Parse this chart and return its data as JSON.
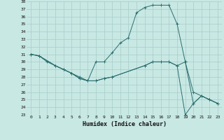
{
  "xlabel": "Humidex (Indice chaleur)",
  "xlim": [
    -0.5,
    23.5
  ],
  "ylim": [
    23,
    38
  ],
  "yticks": [
    23,
    24,
    25,
    26,
    27,
    28,
    29,
    30,
    31,
    32,
    33,
    34,
    35,
    36,
    37,
    38
  ],
  "xticks": [
    0,
    1,
    2,
    3,
    4,
    5,
    6,
    7,
    8,
    9,
    10,
    11,
    12,
    13,
    14,
    15,
    16,
    17,
    18,
    19,
    20,
    21,
    22,
    23
  ],
  "bg_color": "#c8e8e4",
  "grid_color": "#a8ccc8",
  "line_color": "#2a6e6e",
  "line1_x": [
    0,
    1,
    2,
    3,
    4,
    5,
    6,
    7,
    8,
    9,
    10,
    11,
    12,
    13,
    14,
    15,
    16,
    17,
    18,
    19,
    20,
    21,
    22,
    23
  ],
  "line1_y": [
    31,
    30.8,
    30,
    29.5,
    29,
    28.5,
    28,
    27.5,
    30,
    30,
    31.2,
    32.5,
    33.2,
    36.5,
    37.2,
    37.5,
    37.5,
    37.5,
    35,
    30,
    24.5,
    25.5,
    25,
    24.5
  ],
  "line2_x": [
    0,
    1,
    3,
    4,
    5,
    6,
    7,
    8,
    9,
    10,
    14,
    15,
    16,
    17,
    18,
    19,
    20,
    21,
    22,
    23
  ],
  "line2_y": [
    31,
    30.8,
    29.5,
    29,
    28.5,
    27.8,
    27.5,
    27.5,
    27.8,
    28,
    29.5,
    30,
    30,
    30,
    29.5,
    30,
    26,
    25.5,
    25,
    24.5
  ],
  "line3_x": [
    0,
    1,
    3,
    4,
    5,
    6,
    7,
    8,
    9,
    10,
    14,
    15,
    16,
    17,
    18,
    19,
    20,
    21,
    22,
    23
  ],
  "line3_y": [
    31,
    30.8,
    29.5,
    29,
    28.5,
    27.8,
    27.5,
    27.5,
    27.8,
    28,
    29.5,
    30,
    30,
    30,
    29.5,
    23,
    24.5,
    25.5,
    25,
    24.5
  ]
}
